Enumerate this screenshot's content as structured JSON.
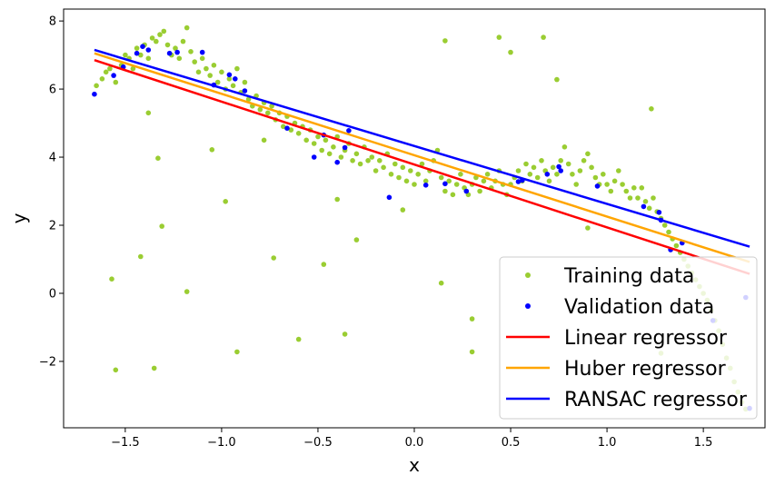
{
  "chart_data": {
    "type": "scatter",
    "xlabel": "x",
    "ylabel": "y",
    "xlim": [
      -1.82,
      1.82
    ],
    "ylim": [
      -3.95,
      8.35
    ],
    "xticks": [
      -1.5,
      -1.0,
      -0.5,
      0.0,
      0.5,
      1.0,
      1.5
    ],
    "xtick_labels": [
      "−1.5",
      "−1.0",
      "−0.5",
      "0.0",
      "0.5",
      "1.0",
      "1.5"
    ],
    "yticks": [
      -2,
      0,
      2,
      4,
      6,
      8
    ],
    "ytick_labels": [
      "−2",
      "0",
      "2",
      "4",
      "6",
      "8"
    ],
    "grid": false,
    "legend_position": "bottom-right",
    "colors": {
      "training": "#9acd32",
      "validation": "#0000ff",
      "linear": "#ff0000",
      "huber": "#ffa500",
      "ransac": "#0000ff"
    },
    "series": [
      {
        "name": "Training data",
        "kind": "scatter",
        "points": [
          [
            -1.65,
            6.1
          ],
          [
            -1.62,
            6.3
          ],
          [
            -1.6,
            6.5
          ],
          [
            -1.58,
            6.6
          ],
          [
            -1.55,
            6.2
          ],
          [
            -1.52,
            6.7
          ],
          [
            -1.5,
            7.0
          ],
          [
            -1.48,
            6.9
          ],
          [
            -1.46,
            6.6
          ],
          [
            -1.44,
            7.2
          ],
          [
            -1.42,
            7.0
          ],
          [
            -1.4,
            7.3
          ],
          [
            -1.38,
            6.9
          ],
          [
            -1.36,
            7.5
          ],
          [
            -1.34,
            7.4
          ],
          [
            -1.32,
            7.6
          ],
          [
            -1.3,
            7.7
          ],
          [
            -1.28,
            7.3
          ],
          [
            -1.26,
            7.0
          ],
          [
            -1.24,
            7.2
          ],
          [
            -1.22,
            6.9
          ],
          [
            -1.2,
            7.4
          ],
          [
            -1.18,
            7.8
          ],
          [
            -1.16,
            7.1
          ],
          [
            -1.14,
            6.8
          ],
          [
            -1.12,
            6.5
          ],
          [
            -1.1,
            6.9
          ],
          [
            -1.08,
            6.6
          ],
          [
            -1.06,
            6.4
          ],
          [
            -1.04,
            6.7
          ],
          [
            -1.02,
            6.2
          ],
          [
            -1.0,
            6.5
          ],
          [
            -0.98,
            6.0
          ],
          [
            -0.96,
            6.3
          ],
          [
            -0.94,
            6.1
          ],
          [
            -0.92,
            6.6
          ],
          [
            -0.9,
            5.9
          ],
          [
            -0.88,
            6.2
          ],
          [
            -0.86,
            5.7
          ],
          [
            -0.84,
            5.5
          ],
          [
            -0.82,
            5.8
          ],
          [
            -0.8,
            5.4
          ],
          [
            -0.78,
            5.6
          ],
          [
            -0.76,
            5.3
          ],
          [
            -0.74,
            5.5
          ],
          [
            -0.72,
            5.1
          ],
          [
            -0.7,
            5.3
          ],
          [
            -0.68,
            4.9
          ],
          [
            -0.66,
            5.2
          ],
          [
            -0.64,
            4.8
          ],
          [
            -0.62,
            5.0
          ],
          [
            -0.6,
            4.7
          ],
          [
            -0.58,
            4.9
          ],
          [
            -0.56,
            4.5
          ],
          [
            -0.54,
            4.8
          ],
          [
            -0.52,
            4.4
          ],
          [
            -0.5,
            4.6
          ],
          [
            -0.48,
            4.2
          ],
          [
            -0.46,
            4.5
          ],
          [
            -0.44,
            4.1
          ],
          [
            -0.42,
            4.3
          ],
          [
            -0.4,
            4.6
          ],
          [
            -0.38,
            4.0
          ],
          [
            -0.36,
            4.2
          ],
          [
            -0.34,
            4.4
          ],
          [
            -0.32,
            3.9
          ],
          [
            -0.3,
            4.1
          ],
          [
            -0.28,
            3.8
          ],
          [
            -0.26,
            4.3
          ],
          [
            -0.24,
            3.9
          ],
          [
            -0.22,
            4.0
          ],
          [
            -0.2,
            3.6
          ],
          [
            -0.18,
            3.9
          ],
          [
            -0.16,
            3.7
          ],
          [
            -0.14,
            4.1
          ],
          [
            -0.12,
            3.5
          ],
          [
            -0.1,
            3.8
          ],
          [
            -0.08,
            3.4
          ],
          [
            -0.06,
            3.7
          ],
          [
            -0.04,
            3.3
          ],
          [
            -0.02,
            3.6
          ],
          [
            0.0,
            3.2
          ],
          [
            0.02,
            3.5
          ],
          [
            0.04,
            3.8
          ],
          [
            0.06,
            3.3
          ],
          [
            0.08,
            3.6
          ],
          [
            0.1,
            3.9
          ],
          [
            0.12,
            4.2
          ],
          [
            0.14,
            3.4
          ],
          [
            0.16,
            3.0
          ],
          [
            0.18,
            3.3
          ],
          [
            0.2,
            2.9
          ],
          [
            0.22,
            3.2
          ],
          [
            0.24,
            3.5
          ],
          [
            0.26,
            3.1
          ],
          [
            0.28,
            2.9
          ],
          [
            0.3,
            3.2
          ],
          [
            0.32,
            3.4
          ],
          [
            0.34,
            3.0
          ],
          [
            0.36,
            3.3
          ],
          [
            0.38,
            3.5
          ],
          [
            0.4,
            3.1
          ],
          [
            0.42,
            3.3
          ],
          [
            0.44,
            3.6
          ],
          [
            0.46,
            3.2
          ],
          [
            0.48,
            2.9
          ],
          [
            0.5,
            3.2
          ],
          [
            0.52,
            3.4
          ],
          [
            0.54,
            3.6
          ],
          [
            0.56,
            3.3
          ],
          [
            0.58,
            3.8
          ],
          [
            0.6,
            3.5
          ],
          [
            0.62,
            3.7
          ],
          [
            0.64,
            3.4
          ],
          [
            0.66,
            3.9
          ],
          [
            0.68,
            3.6
          ],
          [
            0.7,
            3.3
          ],
          [
            0.72,
            3.7
          ],
          [
            0.74,
            3.5
          ],
          [
            0.76,
            3.9
          ],
          [
            0.78,
            4.3
          ],
          [
            0.8,
            3.8
          ],
          [
            0.82,
            3.5
          ],
          [
            0.84,
            3.2
          ],
          [
            0.86,
            3.6
          ],
          [
            0.88,
            3.9
          ],
          [
            0.9,
            4.1
          ],
          [
            0.92,
            3.7
          ],
          [
            0.94,
            3.4
          ],
          [
            0.96,
            3.2
          ],
          [
            0.98,
            3.5
          ],
          [
            1.0,
            3.2
          ],
          [
            1.02,
            3.0
          ],
          [
            1.04,
            3.3
          ],
          [
            1.06,
            3.6
          ],
          [
            1.08,
            3.2
          ],
          [
            1.1,
            3.0
          ],
          [
            1.12,
            2.8
          ],
          [
            1.14,
            3.1
          ],
          [
            1.16,
            2.8
          ],
          [
            1.18,
            3.1
          ],
          [
            1.2,
            2.7
          ],
          [
            1.22,
            2.5
          ],
          [
            1.24,
            2.8
          ],
          [
            1.26,
            2.4
          ],
          [
            1.28,
            2.2
          ],
          [
            1.3,
            2.0
          ],
          [
            1.32,
            1.8
          ],
          [
            1.34,
            1.6
          ],
          [
            1.36,
            1.4
          ],
          [
            1.38,
            1.2
          ],
          [
            1.4,
            1.0
          ],
          [
            1.42,
            0.8
          ],
          [
            1.44,
            0.6
          ],
          [
            1.46,
            0.4
          ],
          [
            1.48,
            0.2
          ],
          [
            1.5,
            0.0
          ],
          [
            1.52,
            -0.2
          ],
          [
            1.54,
            -0.5
          ],
          [
            1.56,
            -0.8
          ],
          [
            1.58,
            -1.1
          ],
          [
            1.6,
            -1.5
          ],
          [
            1.62,
            -1.9
          ],
          [
            1.64,
            -2.2
          ],
          [
            1.66,
            -2.6
          ],
          [
            1.68,
            -2.9
          ],
          [
            1.7,
            -3.2
          ],
          [
            1.72,
            -3.4
          ],
          [
            -1.57,
            0.42
          ],
          [
            -1.55,
            -2.25
          ],
          [
            -1.42,
            1.08
          ],
          [
            -1.38,
            5.3
          ],
          [
            -1.33,
            3.97
          ],
          [
            -1.31,
            1.97
          ],
          [
            -1.35,
            -2.2
          ],
          [
            -1.18,
            0.05
          ],
          [
            -1.05,
            4.22
          ],
          [
            -0.98,
            2.7
          ],
          [
            -0.92,
            -1.72
          ],
          [
            -0.78,
            4.5
          ],
          [
            -0.73,
            1.04
          ],
          [
            -0.6,
            -1.35
          ],
          [
            -0.47,
            0.85
          ],
          [
            -0.4,
            2.76
          ],
          [
            -0.36,
            -1.2
          ],
          [
            -0.3,
            1.57
          ],
          [
            -0.06,
            2.45
          ],
          [
            0.14,
            0.3
          ],
          [
            0.3,
            -0.75
          ],
          [
            0.3,
            -1.72
          ],
          [
            0.16,
            7.42
          ],
          [
            0.44,
            7.52
          ],
          [
            0.5,
            7.08
          ],
          [
            0.67,
            7.52
          ],
          [
            0.74,
            6.28
          ],
          [
            1.23,
            5.42
          ],
          [
            0.9,
            1.92
          ],
          [
            1.28,
            -1.76
          ]
        ]
      },
      {
        "name": "Validation data",
        "kind": "scatter",
        "points": [
          [
            -1.66,
            5.85
          ],
          [
            -1.56,
            6.4
          ],
          [
            -1.51,
            6.65
          ],
          [
            -1.44,
            7.05
          ],
          [
            -1.41,
            7.25
          ],
          [
            -1.38,
            7.15
          ],
          [
            -1.27,
            7.05
          ],
          [
            -1.23,
            7.08
          ],
          [
            -1.1,
            7.08
          ],
          [
            -1.04,
            6.12
          ],
          [
            -0.96,
            6.42
          ],
          [
            -0.93,
            6.3
          ],
          [
            -0.88,
            5.95
          ],
          [
            -0.66,
            4.85
          ],
          [
            -0.52,
            4.0
          ],
          [
            -0.47,
            4.65
          ],
          [
            -0.4,
            3.85
          ],
          [
            -0.36,
            4.28
          ],
          [
            -0.34,
            4.78
          ],
          [
            -0.13,
            2.82
          ],
          [
            0.06,
            3.18
          ],
          [
            0.16,
            3.22
          ],
          [
            0.27,
            3.0
          ],
          [
            0.54,
            3.28
          ],
          [
            0.56,
            3.32
          ],
          [
            0.69,
            3.5
          ],
          [
            0.75,
            3.72
          ],
          [
            0.76,
            3.6
          ],
          [
            0.95,
            3.15
          ],
          [
            1.19,
            2.55
          ],
          [
            1.27,
            2.38
          ],
          [
            1.28,
            2.15
          ],
          [
            1.33,
            1.28
          ],
          [
            1.39,
            1.48
          ],
          [
            1.55,
            -0.8
          ],
          [
            1.72,
            -0.12
          ],
          [
            1.74,
            -3.38
          ]
        ]
      },
      {
        "name": "Linear regressor",
        "kind": "line",
        "x": [
          -1.66,
          1.74
        ],
        "y": [
          6.85,
          0.57
        ]
      },
      {
        "name": "Huber regressor",
        "kind": "line",
        "x": [
          -1.66,
          1.74
        ],
        "y": [
          7.05,
          0.92
        ]
      },
      {
        "name": "RANSAC regressor",
        "kind": "line",
        "x": [
          -1.66,
          1.74
        ],
        "y": [
          7.15,
          1.37
        ]
      }
    ]
  }
}
